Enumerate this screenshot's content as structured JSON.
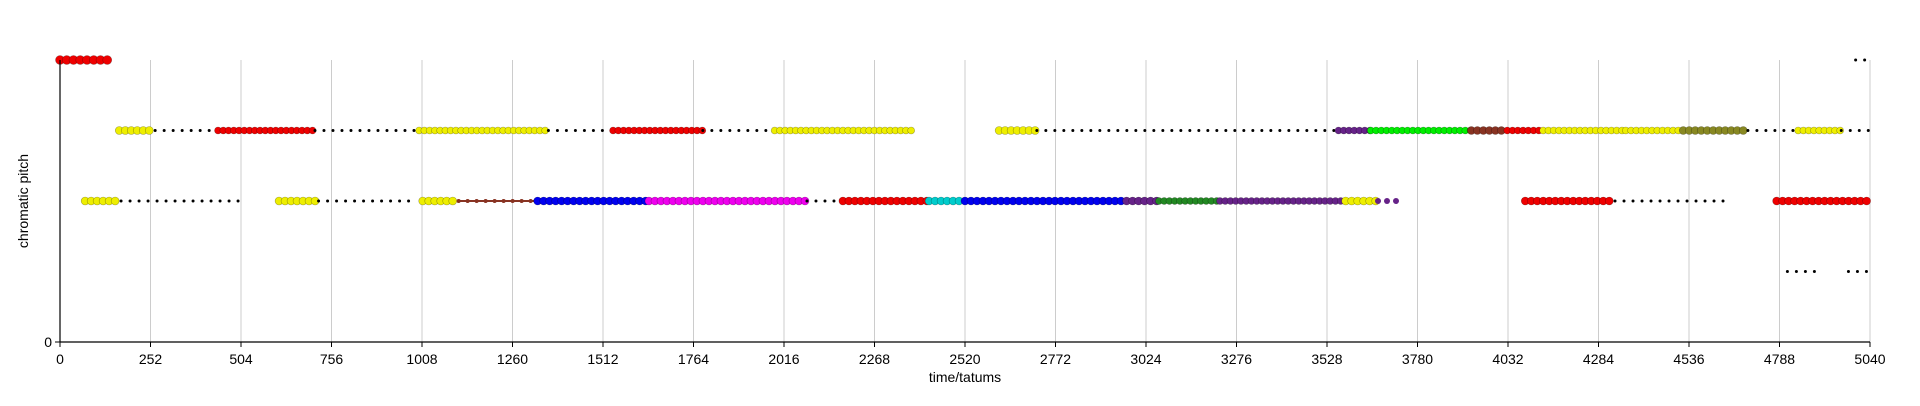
{
  "chart_data": {
    "type": "scatter",
    "xlabel": "time/tatums",
    "ylabel": "chromatic pitch",
    "xlim": [
      0,
      5040
    ],
    "ylim": [
      0,
      4
    ],
    "grid": "vertical",
    "x_ticks": [
      0,
      252,
      504,
      756,
      1008,
      1260,
      1512,
      1764,
      2016,
      2268,
      2520,
      2772,
      3024,
      3276,
      3528,
      3780,
      4032,
      4284,
      4536,
      4788,
      5040
    ],
    "y_ticks": [
      0
    ],
    "colors": {
      "black": "#000000",
      "yellow": "#eeee00",
      "red": "#ee0000",
      "blue": "#0000ee",
      "magenta": "#ee00ee",
      "green": "#00ee00",
      "darkgreen": "#228822",
      "cyan": "#00cccc",
      "purple": "#662288",
      "brown": "#883322",
      "olive": "#888822"
    },
    "series": [
      {
        "y": 4,
        "segments": [
          [
            0,
            140,
            "red",
            9
          ],
          [
            5000,
            5040,
            "black",
            3
          ]
        ]
      },
      {
        "y": 3,
        "segments": [
          [
            165,
            255,
            "yellow",
            8
          ],
          [
            265,
            440,
            "black",
            3
          ],
          [
            440,
            710,
            "red",
            7
          ],
          [
            710,
            1000,
            "black",
            3
          ],
          [
            1000,
            1360,
            "yellow",
            7
          ],
          [
            1360,
            1540,
            "black",
            3
          ],
          [
            1540,
            1790,
            "red",
            7
          ],
          [
            1790,
            1990,
            "black",
            3
          ],
          [
            1990,
            2380,
            "yellow",
            7
          ],
          [
            2615,
            2720,
            "yellow",
            8
          ],
          [
            2720,
            3560,
            "black",
            3
          ],
          [
            3560,
            3650,
            "purple",
            7
          ],
          [
            3650,
            3930,
            "green",
            7
          ],
          [
            3930,
            4030,
            "brown",
            8
          ],
          [
            4030,
            4130,
            "red",
            7
          ],
          [
            4130,
            4360,
            "yellow",
            7
          ],
          [
            4360,
            4520,
            "yellow",
            7
          ],
          [
            4520,
            4700,
            "olive",
            8
          ],
          [
            4700,
            4840,
            "black",
            3
          ],
          [
            4840,
            4960,
            "yellow",
            7
          ],
          [
            4960,
            5040,
            "black",
            3
          ]
        ]
      },
      {
        "y": 2,
        "segments": [
          [
            70,
            170,
            "yellow",
            8
          ],
          [
            170,
            520,
            "black",
            3
          ],
          [
            610,
            720,
            "yellow",
            8
          ],
          [
            720,
            980,
            "black",
            3
          ],
          [
            1010,
            1110,
            "yellow",
            8
          ],
          [
            1110,
            1330,
            "brown",
            4
          ],
          [
            1330,
            1640,
            "blue",
            8
          ],
          [
            1640,
            2080,
            "magenta",
            8
          ],
          [
            2080,
            2160,
            "black",
            3
          ],
          [
            2180,
            2420,
            "red",
            8
          ],
          [
            2420,
            2520,
            "cyan",
            8
          ],
          [
            2520,
            2970,
            "blue",
            8
          ],
          [
            2970,
            3060,
            "purple",
            8
          ],
          [
            3060,
            3230,
            "darkgreen",
            7
          ],
          [
            3230,
            3580,
            "purple",
            7
          ],
          [
            3580,
            3670,
            "yellow",
            8
          ],
          [
            3670,
            3730,
            "purple",
            6
          ],
          [
            4080,
            4330,
            "red",
            8
          ],
          [
            4330,
            4640,
            "black",
            3
          ],
          [
            4780,
            5040,
            "red",
            8
          ]
        ]
      },
      {
        "y": 1,
        "segments": [
          [
            4810,
            4900,
            "black",
            3
          ],
          [
            4980,
            5040,
            "black",
            3
          ]
        ]
      }
    ]
  }
}
